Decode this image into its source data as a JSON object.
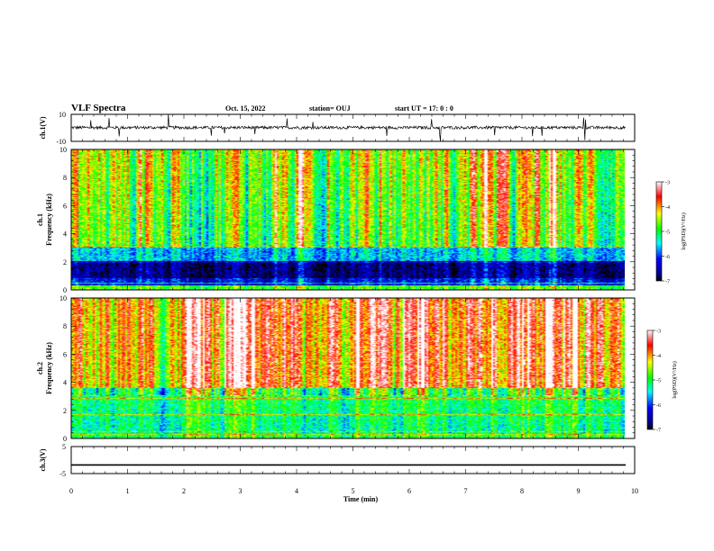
{
  "header": {
    "title": "VLF Spectra",
    "date": "Oct. 15, 2022",
    "station": "station= OUJ",
    "start": "start  UT  =   17: 0  : 0"
  },
  "chart_data": [
    {
      "type": "line",
      "panel": "ch1-waveform",
      "ylabel": "ch.1(V)",
      "ylim": [
        -10,
        10
      ],
      "y_ticklabels": [
        "10",
        "-10"
      ],
      "series": [
        {
          "values_note_free": true,
          "baseline": 0
        }
      ]
    },
    {
      "type": "heatmap",
      "panel": "ch1-spectrogram",
      "ylabel": "ch.1 Frequency (kHz)",
      "ylabel_line1": "ch.1",
      "ylabel_line2": "Frequency (kHz)",
      "ylim": [
        0,
        10
      ],
      "y_ticklabels": [
        "0",
        "2",
        "4",
        "6",
        "8",
        "10"
      ],
      "colorbar": {
        "label": "log(PSD)(V²/Hz)",
        "range": [
          -7,
          -3
        ],
        "ticklabels": [
          "-3",
          "-4",
          "-5",
          "-6",
          "-7"
        ]
      }
    },
    {
      "type": "heatmap",
      "panel": "ch2-spectrogram",
      "ylabel": "ch.2 Frequency (kHz)",
      "ylabel_line1": "ch.2",
      "ylabel_line2": "Frequency (kHz)",
      "ylim": [
        0,
        10
      ],
      "y_ticklabels": [
        "0",
        "2",
        "4",
        "6",
        "8",
        "10"
      ],
      "colorbar": {
        "label": "log(PSD)(V²/Hz)",
        "range": [
          -7,
          -3
        ],
        "ticklabels": [
          "-3",
          "-4",
          "-5",
          "-6",
          "-7"
        ]
      }
    },
    {
      "type": "line",
      "panel": "ch3-waveform",
      "ylabel": "ch.3(V)",
      "ylim": [
        -5,
        5
      ],
      "y_ticklabels": [
        "5",
        "-5"
      ],
      "series": [
        {
          "constant": -1.8
        }
      ]
    }
  ],
  "xaxis": {
    "label": "Time (min)",
    "xlim": [
      0,
      10
    ],
    "ticklabels": [
      "0",
      "1",
      "2",
      "3",
      "4",
      "5",
      "6",
      "7",
      "8",
      "9",
      "10"
    ],
    "data_end": 9.84
  },
  "colors": {
    "cmap": [
      "#00007f",
      "#0000ff",
      "#00ffff",
      "#00ff00",
      "#ffff00",
      "#ff0000",
      "#ffffff"
    ]
  }
}
